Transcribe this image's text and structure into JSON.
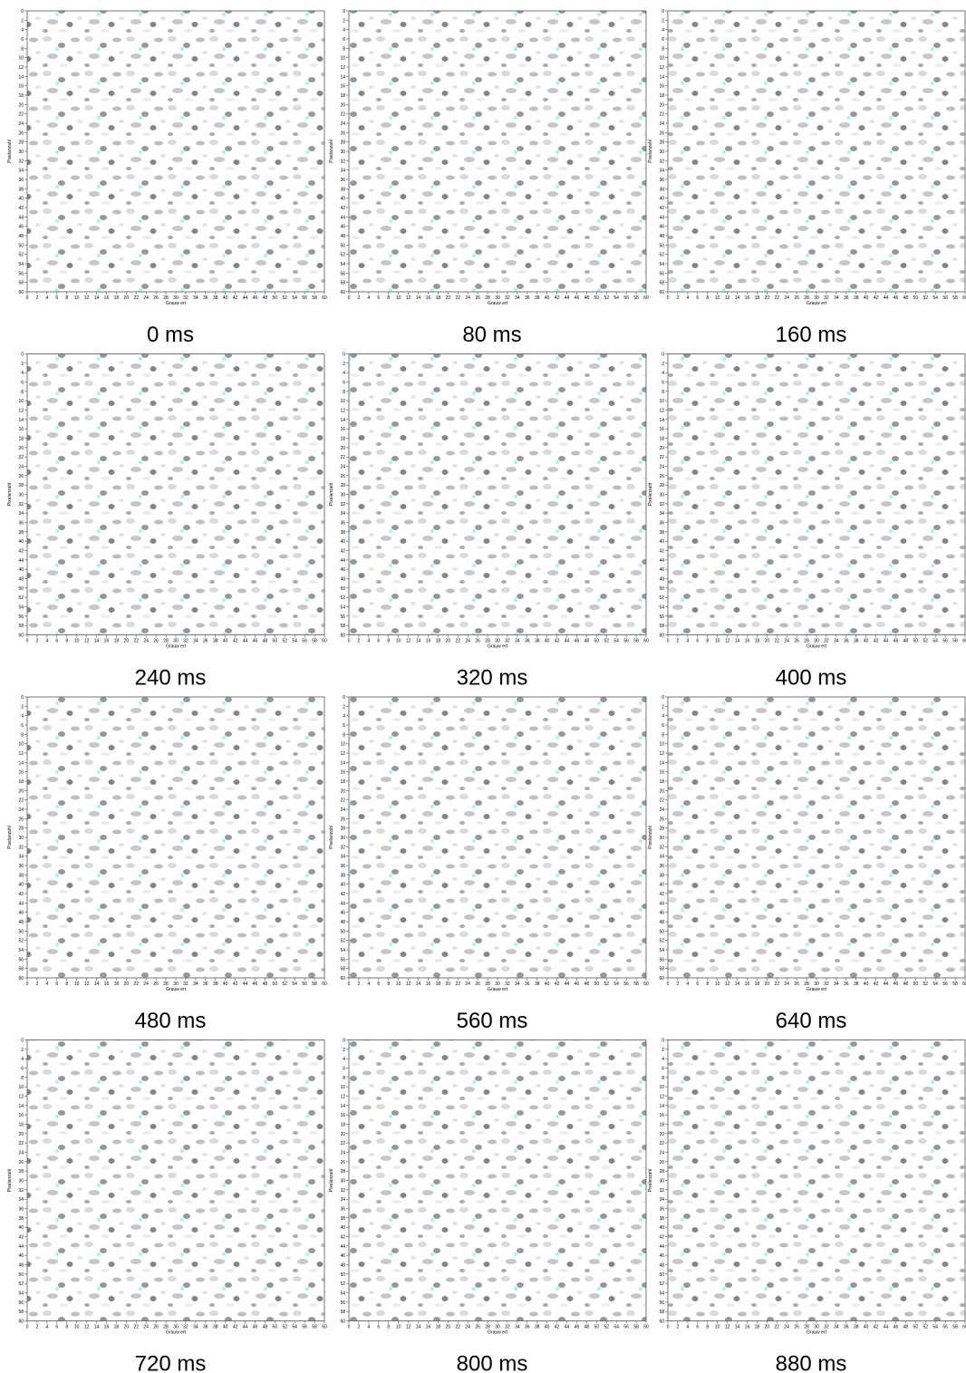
{
  "chart_data": [
    {
      "type": "heatmap",
      "title": "0 ms",
      "xlabel": "Grauw ert",
      "ylabel": "Pixelanzahl",
      "xlim": [
        0,
        60
      ],
      "ylim": [
        60,
        0
      ],
      "xticks": [
        0,
        2,
        4,
        6,
        8,
        10,
        12,
        14,
        16,
        18,
        20,
        22,
        24,
        26,
        28,
        30,
        32,
        34,
        36,
        38,
        40,
        42,
        44,
        46,
        48,
        50,
        52,
        54,
        56,
        58,
        60
      ],
      "yticks": [
        0,
        2,
        4,
        6,
        8,
        10,
        12,
        14,
        16,
        18,
        20,
        22,
        24,
        26,
        28,
        30,
        32,
        34,
        36,
        38,
        40,
        42,
        44,
        46,
        48,
        50,
        52,
        54,
        56,
        58,
        60
      ]
    },
    {
      "type": "heatmap",
      "title": "80 ms",
      "xlabel": "Grauw ert",
      "ylabel": "Pixelanzahl",
      "xlim": [
        0,
        60
      ],
      "ylim": [
        60,
        0
      ],
      "xticks": [
        0,
        2,
        4,
        6,
        8,
        10,
        12,
        14,
        16,
        18,
        20,
        22,
        24,
        26,
        28,
        30,
        32,
        34,
        36,
        38,
        40,
        42,
        44,
        46,
        48,
        50,
        52,
        54,
        56,
        58,
        60
      ],
      "yticks": [
        0,
        2,
        4,
        6,
        8,
        10,
        12,
        14,
        16,
        18,
        20,
        22,
        24,
        26,
        28,
        30,
        32,
        34,
        36,
        38,
        40,
        42,
        44,
        46,
        48,
        50,
        52,
        54,
        56,
        58,
        60
      ]
    },
    {
      "type": "heatmap",
      "title": "160 ms",
      "xlabel": "Grauw ert",
      "ylabel": "Pixelanzahl",
      "xlim": [
        0,
        60
      ],
      "ylim": [
        60,
        0
      ],
      "xticks": [
        0,
        2,
        4,
        6,
        8,
        10,
        12,
        14,
        16,
        18,
        20,
        22,
        24,
        26,
        28,
        30,
        32,
        34,
        36,
        38,
        40,
        42,
        44,
        46,
        48,
        50,
        52,
        54,
        56,
        58,
        60
      ],
      "yticks": [
        0,
        2,
        4,
        6,
        8,
        10,
        12,
        14,
        16,
        18,
        20,
        22,
        24,
        26,
        28,
        30,
        32,
        34,
        36,
        38,
        40,
        42,
        44,
        46,
        48,
        50,
        52,
        54,
        56,
        58,
        60
      ]
    },
    {
      "type": "heatmap",
      "title": "240 ms",
      "xlabel": "Grauw ert",
      "ylabel": "Pixelanzahl",
      "xlim": [
        0,
        60
      ],
      "ylim": [
        60,
        0
      ],
      "xticks": [
        0,
        2,
        4,
        6,
        8,
        10,
        12,
        14,
        16,
        18,
        20,
        22,
        24,
        26,
        28,
        30,
        32,
        34,
        36,
        38,
        40,
        42,
        44,
        46,
        48,
        50,
        52,
        54,
        56,
        58,
        60
      ],
      "yticks": [
        0,
        2,
        4,
        6,
        8,
        10,
        12,
        14,
        16,
        18,
        20,
        22,
        24,
        26,
        28,
        30,
        32,
        34,
        36,
        38,
        40,
        42,
        44,
        46,
        48,
        50,
        52,
        54,
        56,
        58,
        60
      ]
    },
    {
      "type": "heatmap",
      "title": "320 ms",
      "xlabel": "Grauw ert",
      "ylabel": "Pixelanzahl",
      "xlim": [
        0,
        60
      ],
      "ylim": [
        60,
        0
      ],
      "xticks": [
        0,
        2,
        4,
        6,
        8,
        10,
        12,
        14,
        16,
        18,
        20,
        22,
        24,
        26,
        28,
        30,
        32,
        34,
        36,
        38,
        40,
        42,
        44,
        46,
        48,
        50,
        52,
        54,
        56,
        58,
        60
      ],
      "yticks": [
        0,
        2,
        4,
        6,
        8,
        10,
        12,
        14,
        16,
        18,
        20,
        22,
        24,
        26,
        28,
        30,
        32,
        34,
        36,
        38,
        40,
        42,
        44,
        46,
        48,
        50,
        52,
        54,
        56,
        58,
        60
      ]
    },
    {
      "type": "heatmap",
      "title": "400 ms",
      "xlabel": "Grauw ert",
      "ylabel": "Pixelanzahl",
      "xlim": [
        0,
        60
      ],
      "ylim": [
        60,
        0
      ],
      "xticks": [
        0,
        2,
        4,
        6,
        8,
        10,
        12,
        14,
        16,
        18,
        20,
        22,
        24,
        26,
        28,
        30,
        32,
        34,
        36,
        38,
        40,
        42,
        44,
        46,
        48,
        50,
        52,
        54,
        56,
        58,
        60
      ],
      "yticks": [
        0,
        2,
        4,
        6,
        8,
        10,
        12,
        14,
        16,
        18,
        20,
        22,
        24,
        26,
        28,
        30,
        32,
        34,
        36,
        38,
        40,
        42,
        44,
        46,
        48,
        50,
        52,
        54,
        56,
        58,
        60
      ]
    },
    {
      "type": "heatmap",
      "title": "480 ms",
      "xlabel": "Grauw ert",
      "ylabel": "Pixelanzahl",
      "xlim": [
        0,
        60
      ],
      "ylim": [
        60,
        0
      ],
      "xticks": [
        0,
        2,
        4,
        6,
        8,
        10,
        12,
        14,
        16,
        18,
        20,
        22,
        24,
        26,
        28,
        30,
        32,
        34,
        36,
        38,
        40,
        42,
        44,
        46,
        48,
        50,
        52,
        54,
        56,
        58,
        60
      ],
      "yticks": [
        0,
        2,
        4,
        6,
        8,
        10,
        12,
        14,
        16,
        18,
        20,
        22,
        24,
        26,
        28,
        30,
        32,
        34,
        36,
        38,
        40,
        42,
        44,
        46,
        48,
        50,
        52,
        54,
        56,
        58,
        60
      ]
    },
    {
      "type": "heatmap",
      "title": "560 ms",
      "xlabel": "Grauw ert",
      "ylabel": "Pixelanzahl",
      "xlim": [
        0,
        60
      ],
      "ylim": [
        60,
        0
      ],
      "xticks": [
        0,
        2,
        4,
        6,
        8,
        10,
        12,
        14,
        16,
        18,
        20,
        22,
        24,
        26,
        28,
        30,
        32,
        34,
        36,
        38,
        40,
        42,
        44,
        46,
        48,
        50,
        52,
        54,
        56,
        58,
        60
      ],
      "yticks": [
        0,
        2,
        4,
        6,
        8,
        10,
        12,
        14,
        16,
        18,
        20,
        22,
        24,
        26,
        28,
        30,
        32,
        34,
        36,
        38,
        40,
        42,
        44,
        46,
        48,
        50,
        52,
        54,
        56,
        58,
        60
      ]
    },
    {
      "type": "heatmap",
      "title": "640 ms",
      "xlabel": "Grauw ert",
      "ylabel": "Pixelanzahl",
      "xlim": [
        0,
        60
      ],
      "ylim": [
        60,
        0
      ],
      "xticks": [
        0,
        2,
        4,
        6,
        8,
        10,
        12,
        14,
        16,
        18,
        20,
        22,
        24,
        26,
        28,
        30,
        32,
        34,
        36,
        38,
        40,
        42,
        44,
        46,
        48,
        50,
        52,
        54,
        56,
        58,
        60
      ],
      "yticks": [
        0,
        2,
        4,
        6,
        8,
        10,
        12,
        14,
        16,
        18,
        20,
        22,
        24,
        26,
        28,
        30,
        32,
        34,
        36,
        38,
        40,
        42,
        44,
        46,
        48,
        50,
        52,
        54,
        56,
        58,
        60
      ]
    },
    {
      "type": "heatmap",
      "title": "720 ms",
      "xlabel": "Grauw ert",
      "ylabel": "Pixelanzahl",
      "xlim": [
        0,
        60
      ],
      "ylim": [
        60,
        0
      ],
      "xticks": [
        0,
        2,
        4,
        6,
        8,
        10,
        12,
        14,
        16,
        18,
        20,
        22,
        24,
        26,
        28,
        30,
        32,
        34,
        36,
        38,
        40,
        42,
        44,
        46,
        48,
        50,
        52,
        54,
        56,
        58,
        60
      ],
      "yticks": [
        0,
        2,
        4,
        6,
        8,
        10,
        12,
        14,
        16,
        18,
        20,
        22,
        24,
        26,
        28,
        30,
        32,
        34,
        36,
        38,
        40,
        42,
        44,
        46,
        48,
        50,
        52,
        54,
        56,
        58,
        60
      ]
    },
    {
      "type": "heatmap",
      "title": "800 ms",
      "xlabel": "Grauw ert",
      "ylabel": "Pixelanzahl",
      "xlim": [
        0,
        60
      ],
      "ylim": [
        60,
        0
      ],
      "xticks": [
        0,
        2,
        4,
        6,
        8,
        10,
        12,
        14,
        16,
        18,
        20,
        22,
        24,
        26,
        28,
        30,
        32,
        34,
        36,
        38,
        40,
        42,
        44,
        46,
        48,
        50,
        52,
        54,
        56,
        58,
        60
      ],
      "yticks": [
        0,
        2,
        4,
        6,
        8,
        10,
        12,
        14,
        16,
        18,
        20,
        22,
        24,
        26,
        28,
        30,
        32,
        34,
        36,
        38,
        40,
        42,
        44,
        46,
        48,
        50,
        52,
        54,
        56,
        58,
        60
      ]
    },
    {
      "type": "heatmap",
      "title": "880 ms",
      "xlabel": "Grauw ert",
      "ylabel": "Pixelanzahl",
      "xlim": [
        0,
        60
      ],
      "ylim": [
        60,
        0
      ],
      "xticks": [
        0,
        2,
        4,
        6,
        8,
        10,
        12,
        14,
        16,
        18,
        20,
        22,
        24,
        26,
        28,
        30,
        32,
        34,
        36,
        38,
        40,
        42,
        44,
        46,
        48,
        50,
        52,
        54,
        56,
        58,
        60
      ],
      "yticks": [
        0,
        2,
        4,
        6,
        8,
        10,
        12,
        14,
        16,
        18,
        20,
        22,
        24,
        26,
        28,
        30,
        32,
        34,
        36,
        38,
        40,
        42,
        44,
        46,
        48,
        50,
        52,
        54,
        56,
        58,
        60
      ]
    }
  ]
}
